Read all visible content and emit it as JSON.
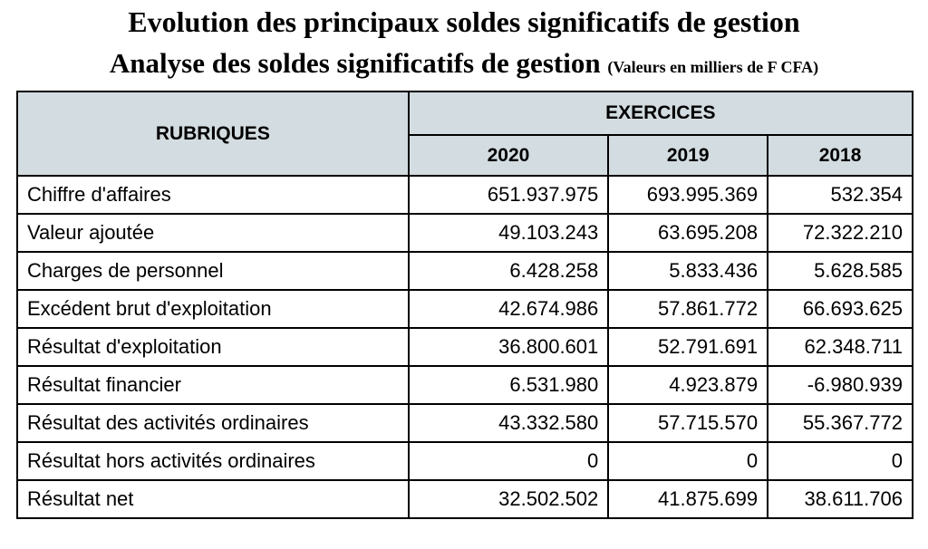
{
  "header": {
    "title": "Evolution des principaux soldes significatifs de gestion",
    "subtitle": "Analyse des soldes significatifs de gestion",
    "unit_note": "(Valeurs en milliers de F CFA)"
  },
  "table": {
    "row_header": "RUBRIQUES",
    "group_header": "EXERCICES",
    "years": [
      "2020",
      "2019",
      "2018"
    ],
    "rows": [
      [
        "Chiffre d'affaires",
        "651.937.975",
        "693.995.369",
        "532.354"
      ],
      [
        "Valeur ajoutée",
        "49.103.243",
        "63.695.208",
        "72.322.210"
      ],
      [
        "Charges de personnel",
        "6.428.258",
        "5.833.436",
        "5.628.585"
      ],
      [
        "Excédent brut d'exploitation",
        "42.674.986",
        "57.861.772",
        "66.693.625"
      ],
      [
        "Résultat d'exploitation",
        "36.800.601",
        "52.791.691",
        "62.348.711"
      ],
      [
        "Résultat financier",
        "6.531.980",
        "4.923.879",
        "-6.980.939"
      ],
      [
        "Résultat des activités ordinaires",
        "43.332.580",
        "57.715.570",
        "55.367.772"
      ],
      [
        "Résultat hors activités ordinaires",
        "0",
        "0",
        "0"
      ],
      [
        "Résultat net",
        "32.502.502",
        "41.875.699",
        "38.611.706"
      ]
    ]
  }
}
